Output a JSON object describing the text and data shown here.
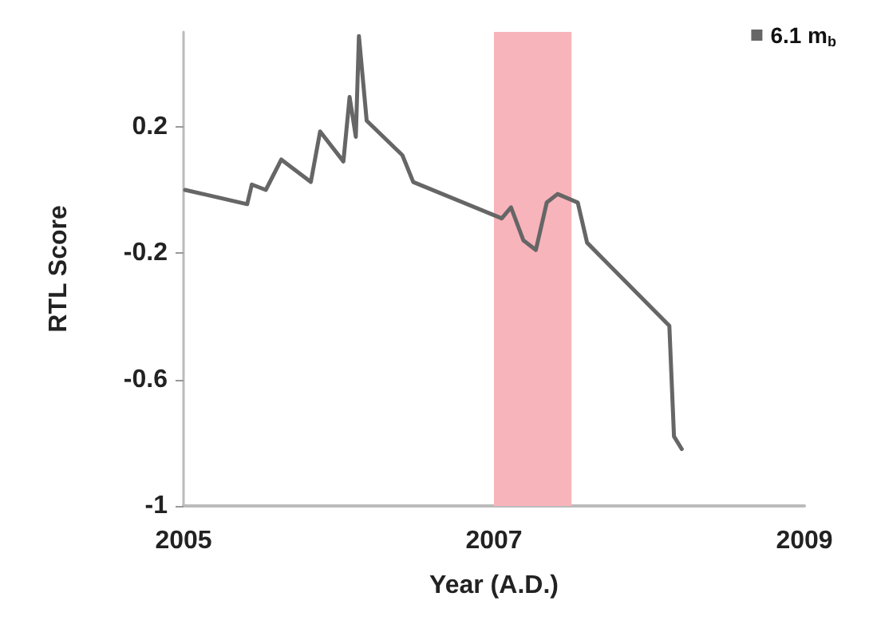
{
  "chart_data": {
    "type": "line",
    "xlabel": "Year (A.D.)",
    "ylabel": "RTL Score",
    "x": [
      2005.01,
      2005.41,
      2005.44,
      2005.53,
      2005.63,
      2005.82,
      2005.88,
      2006.03,
      2006.07,
      2006.11,
      2006.13,
      2006.18,
      2006.41,
      2006.48,
      2007.05,
      2007.11,
      2007.19,
      2007.27,
      2007.34,
      2007.41,
      2007.54,
      2007.6,
      2008.13,
      2008.16,
      2008.21
    ],
    "series": [
      {
        "name": "6.1 m$_{b}$",
        "color": "#666666",
        "values": [
          0.0,
          -0.045,
          0.017,
          0.0,
          0.096,
          0.025,
          0.185,
          0.09,
          0.294,
          0.168,
          0.487,
          0.219,
          0.11,
          0.025,
          -0.09,
          -0.055,
          -0.16,
          -0.19,
          -0.04,
          -0.013,
          -0.04,
          -0.167,
          -0.43,
          -0.78,
          -0.82
        ]
      }
    ],
    "xlim": [
      2005,
      2009
    ],
    "xticks": [
      2005,
      2007,
      2009
    ],
    "ylim": [
      -1,
      0.5
    ],
    "yticks": [
      -1,
      -0.6,
      -0.2,
      0.2
    ],
    "bands": [
      {
        "axis": "x",
        "from": 2007,
        "to": 2007.5,
        "color": "#f8b4bb"
      }
    ],
    "grid": false,
    "legend": "top right",
    "marker": "none",
    "line_style": "solid"
  }
}
